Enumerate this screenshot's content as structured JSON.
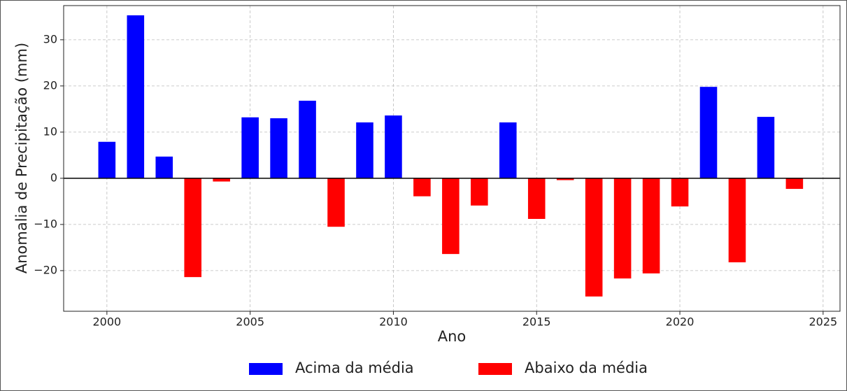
{
  "chart_data": {
    "type": "bar",
    "xlabel": "Ano",
    "ylabel": "Anomalia de Precipitação (mm)",
    "x": [
      2000,
      2001,
      2002,
      2003,
      2004,
      2005,
      2006,
      2007,
      2008,
      2009,
      2010,
      2011,
      2012,
      2013,
      2014,
      2015,
      2016,
      2017,
      2018,
      2019,
      2020,
      2021,
      2022,
      2023,
      2024
    ],
    "series": [
      {
        "name": "Acima da média",
        "color": "#0000ff",
        "values": [
          7.9,
          35.3,
          4.7,
          null,
          null,
          13.2,
          13.0,
          16.8,
          null,
          12.1,
          13.6,
          null,
          null,
          null,
          12.1,
          null,
          null,
          null,
          null,
          null,
          null,
          19.8,
          null,
          13.3,
          null
        ]
      },
      {
        "name": "Abaixo da média",
        "color": "#ff0000",
        "values": [
          null,
          null,
          null,
          -21.4,
          -0.7,
          null,
          null,
          null,
          -10.5,
          null,
          null,
          -3.9,
          -16.4,
          -5.9,
          null,
          -8.8,
          -0.4,
          -25.6,
          -21.7,
          -20.6,
          -6.1,
          null,
          -18.2,
          null,
          -2.3
        ]
      }
    ],
    "xlim": [
      1998.49,
      2025.59
    ],
    "xticks": [
      2000,
      2005,
      2010,
      2015,
      2020,
      2025
    ],
    "ylim": [
      -28.8,
      37.4
    ],
    "yticks": [
      {
        "value": -20,
        "label": "−20"
      },
      {
        "value": -10,
        "label": "−10"
      },
      0,
      10,
      20,
      30
    ],
    "grid": true,
    "legend": "bottom"
  }
}
